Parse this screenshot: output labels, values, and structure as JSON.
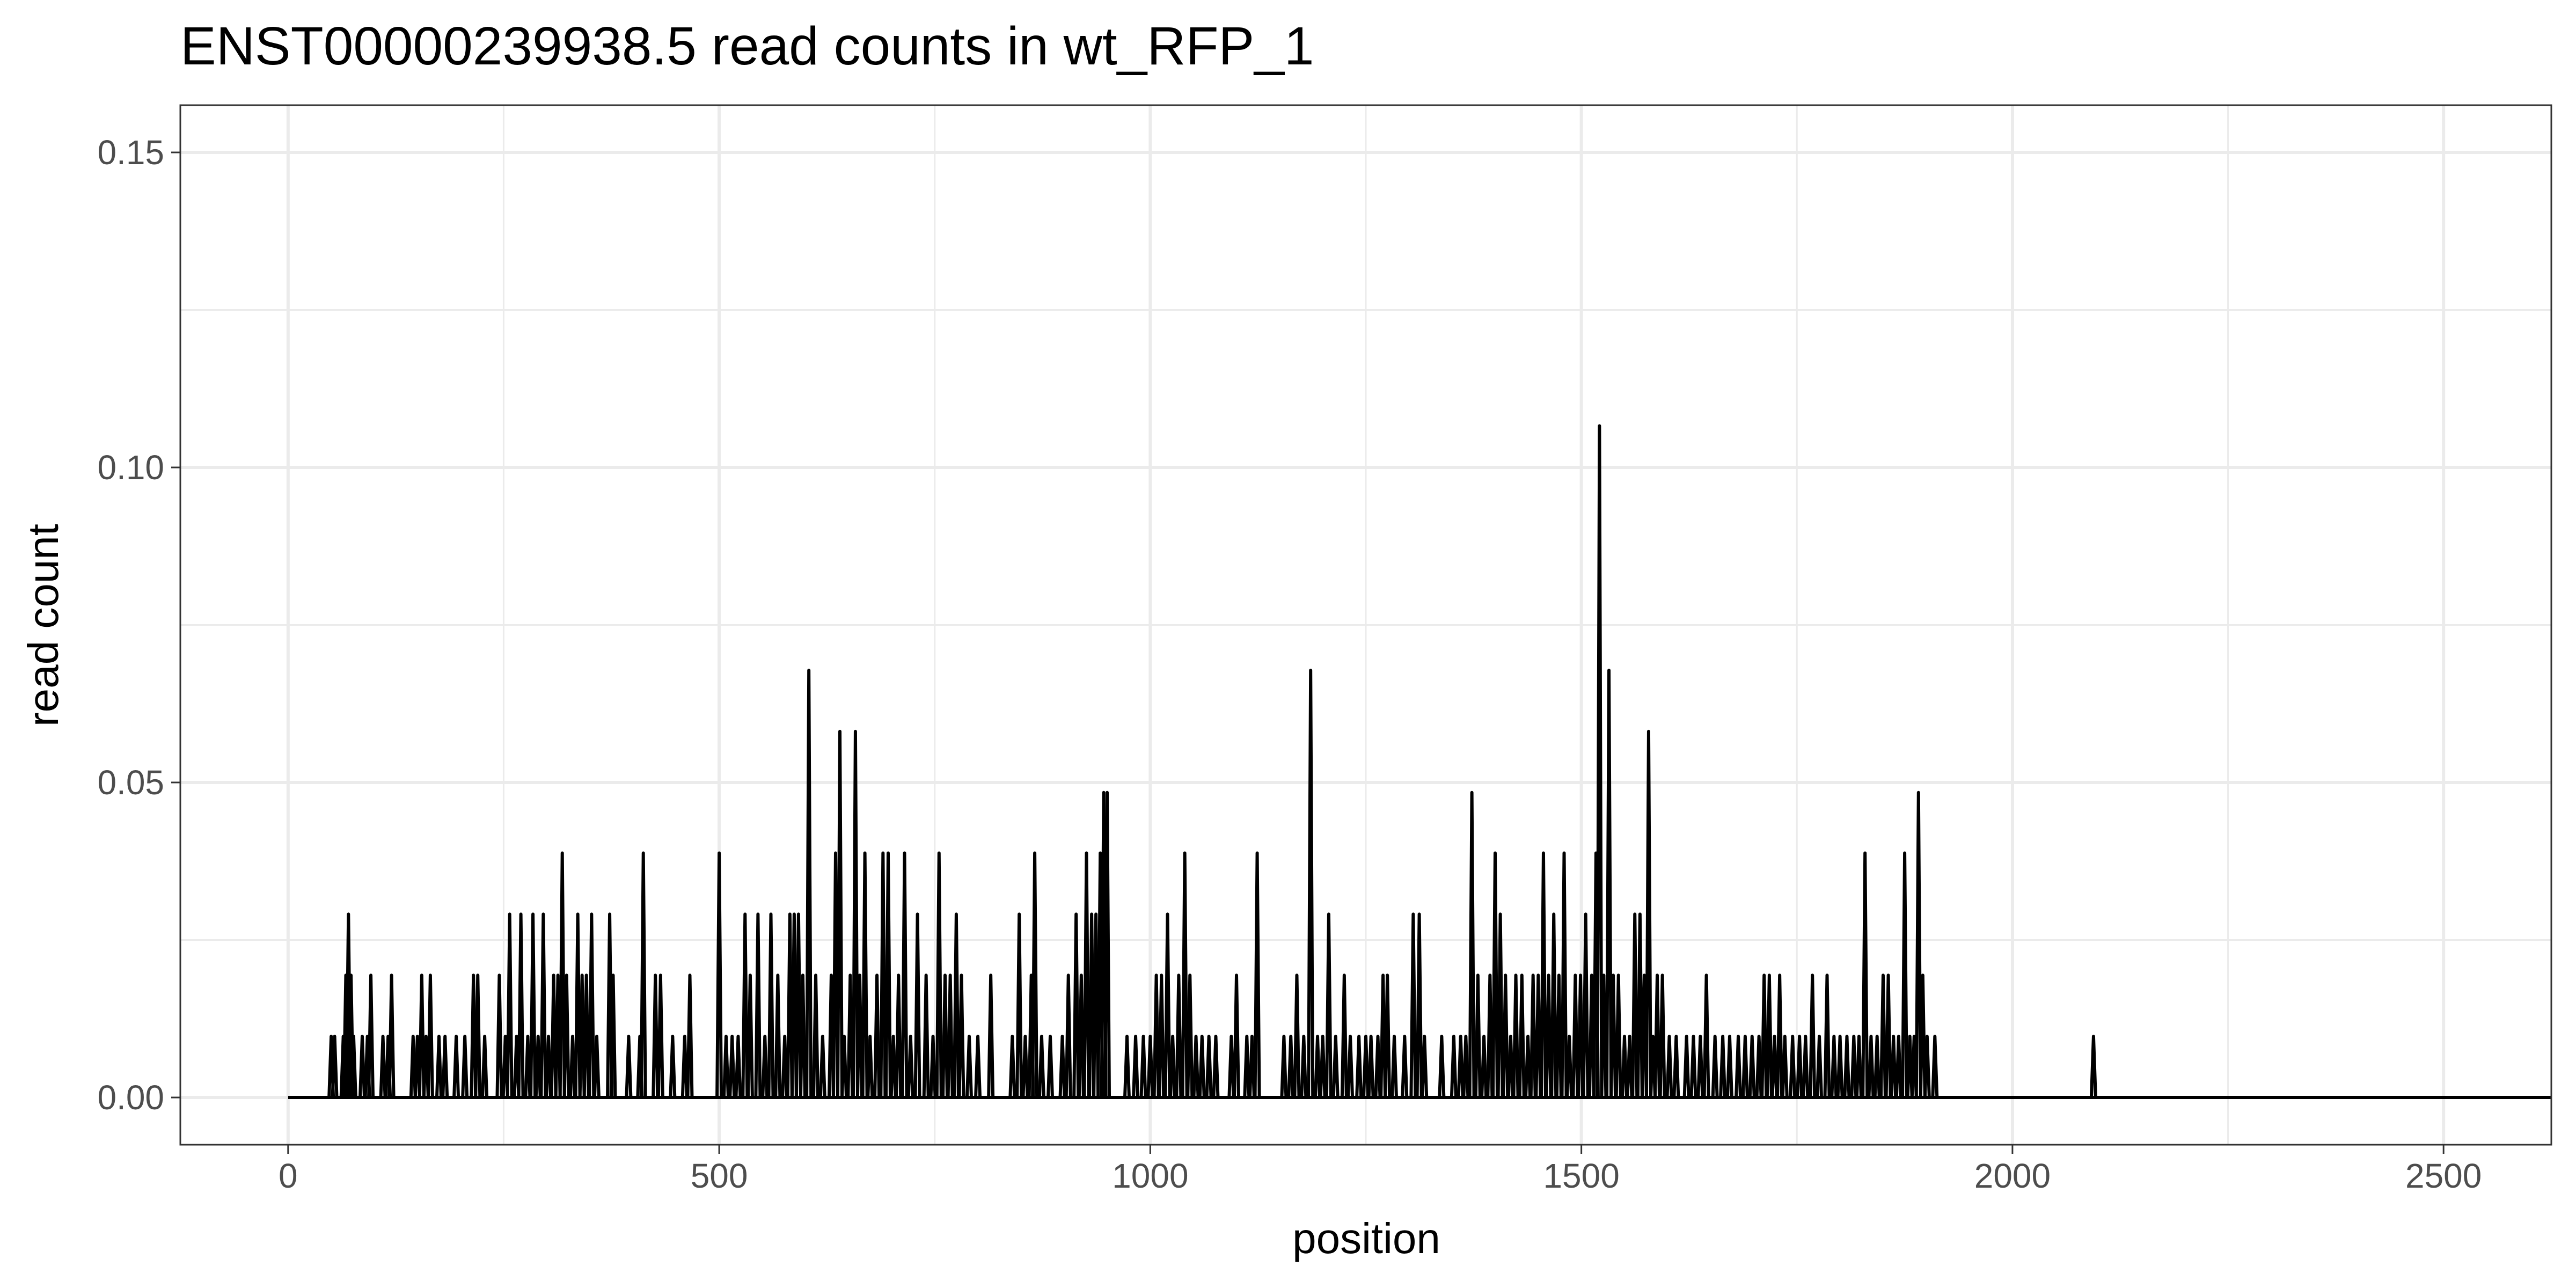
{
  "chart_data": {
    "type": "line",
    "title": "ENST00000239938.5  read counts in  wt_RFP_1",
    "xlabel": "position",
    "ylabel": "read count",
    "xlim": [
      -125,
      2625
    ],
    "ylim": [
      -0.0075,
      0.1575
    ],
    "x_ticks": [
      0,
      500,
      1000,
      1500,
      2000,
      2500
    ],
    "x_tick_labels": [
      "0",
      "500",
      "1000",
      "1500",
      "2000",
      "2500"
    ],
    "y_ticks": [
      0.0,
      0.05,
      0.1,
      0.15
    ],
    "y_tick_labels": [
      "0.00",
      "0.05",
      "0.10",
      "0.15"
    ],
    "grid": true,
    "colors": {
      "line": "#000000",
      "grid": "#ebebeb",
      "panel_border": "#333333",
      "tick_text": "#4d4d4d"
    },
    "series": [
      {
        "name": "wt_RFP_1",
        "baseline_range": [
          0,
          2625
        ],
        "peaks": [
          [
            50,
            0.0097
          ],
          [
            54,
            0.0097
          ],
          [
            64,
            0.0097
          ],
          [
            67,
            0.0194
          ],
          [
            70,
            0.0291
          ],
          [
            73,
            0.0194
          ],
          [
            76,
            0.0097
          ],
          [
            86,
            0.0097
          ],
          [
            92,
            0.0097
          ],
          [
            96,
            0.0194
          ],
          [
            110,
            0.0097
          ],
          [
            116,
            0.0097
          ],
          [
            120,
            0.0194
          ],
          [
            145,
            0.0097
          ],
          [
            150,
            0.0097
          ],
          [
            155,
            0.0194
          ],
          [
            160,
            0.0097
          ],
          [
            165,
            0.0194
          ],
          [
            175,
            0.0097
          ],
          [
            182,
            0.0097
          ],
          [
            195,
            0.0097
          ],
          [
            205,
            0.0097
          ],
          [
            215,
            0.0194
          ],
          [
            220,
            0.0194
          ],
          [
            228,
            0.0097
          ],
          [
            245,
            0.0194
          ],
          [
            252,
            0.0097
          ],
          [
            257,
            0.0291
          ],
          [
            265,
            0.0097
          ],
          [
            270,
            0.0291
          ],
          [
            278,
            0.0097
          ],
          [
            284,
            0.0291
          ],
          [
            290,
            0.0097
          ],
          [
            296,
            0.0291
          ],
          [
            302,
            0.0097
          ],
          [
            308,
            0.0194
          ],
          [
            313,
            0.0194
          ],
          [
            318,
            0.0388
          ],
          [
            323,
            0.0194
          ],
          [
            330,
            0.0097
          ],
          [
            336,
            0.0291
          ],
          [
            341,
            0.0194
          ],
          [
            346,
            0.0194
          ],
          [
            352,
            0.0291
          ],
          [
            358,
            0.0097
          ],
          [
            373,
            0.0291
          ],
          [
            377,
            0.0194
          ],
          [
            395,
            0.0097
          ],
          [
            408,
            0.0097
          ],
          [
            412,
            0.0388
          ],
          [
            426,
            0.0194
          ],
          [
            432,
            0.0194
          ],
          [
            446,
            0.0097
          ],
          [
            460,
            0.0097
          ],
          [
            466,
            0.0194
          ],
          [
            500,
            0.0388
          ],
          [
            508,
            0.0097
          ],
          [
            515,
            0.0097
          ],
          [
            522,
            0.0097
          ],
          [
            530,
            0.0291
          ],
          [
            536,
            0.0194
          ],
          [
            545,
            0.0291
          ],
          [
            553,
            0.0097
          ],
          [
            560,
            0.0291
          ],
          [
            568,
            0.0194
          ],
          [
            576,
            0.0097
          ],
          [
            582,
            0.0291
          ],
          [
            587,
            0.0291
          ],
          [
            592,
            0.0291
          ],
          [
            597,
            0.0194
          ],
          [
            604,
            0.0678
          ],
          [
            612,
            0.0194
          ],
          [
            620,
            0.0097
          ],
          [
            630,
            0.0194
          ],
          [
            635,
            0.0388
          ],
          [
            640,
            0.0581
          ],
          [
            645,
            0.0097
          ],
          [
            652,
            0.0194
          ],
          [
            658,
            0.0581
          ],
          [
            663,
            0.0194
          ],
          [
            669,
            0.0388
          ],
          [
            675,
            0.0097
          ],
          [
            683,
            0.0194
          ],
          [
            690,
            0.0388
          ],
          [
            696,
            0.0388
          ],
          [
            702,
            0.0097
          ],
          [
            708,
            0.0194
          ],
          [
            715,
            0.0388
          ],
          [
            722,
            0.0097
          ],
          [
            730,
            0.0291
          ],
          [
            740,
            0.0194
          ],
          [
            748,
            0.0097
          ],
          [
            755,
            0.0388
          ],
          [
            762,
            0.0194
          ],
          [
            768,
            0.0194
          ],
          [
            775,
            0.0291
          ],
          [
            781,
            0.0194
          ],
          [
            790,
            0.0097
          ],
          [
            800,
            0.0097
          ],
          [
            815,
            0.0194
          ],
          [
            840,
            0.0097
          ],
          [
            848,
            0.0291
          ],
          [
            855,
            0.0097
          ],
          [
            862,
            0.0194
          ],
          [
            866,
            0.0388
          ],
          [
            874,
            0.0097
          ],
          [
            884,
            0.0097
          ],
          [
            898,
            0.0097
          ],
          [
            905,
            0.0194
          ],
          [
            914,
            0.0291
          ],
          [
            920,
            0.0194
          ],
          [
            926,
            0.0388
          ],
          [
            932,
            0.0291
          ],
          [
            937,
            0.0291
          ],
          [
            942,
            0.0388
          ],
          [
            946,
            0.0484
          ],
          [
            950,
            0.0484
          ],
          [
            973,
            0.0097
          ],
          [
            983,
            0.0097
          ],
          [
            992,
            0.0097
          ],
          [
            1000,
            0.0097
          ],
          [
            1007,
            0.0194
          ],
          [
            1013,
            0.0194
          ],
          [
            1020,
            0.0291
          ],
          [
            1026,
            0.0097
          ],
          [
            1033,
            0.0194
          ],
          [
            1040,
            0.0388
          ],
          [
            1046,
            0.0194
          ],
          [
            1053,
            0.0097
          ],
          [
            1060,
            0.0097
          ],
          [
            1068,
            0.0097
          ],
          [
            1076,
            0.0097
          ],
          [
            1094,
            0.0097
          ],
          [
            1100,
            0.0194
          ],
          [
            1112,
            0.0097
          ],
          [
            1118,
            0.0097
          ],
          [
            1124,
            0.0388
          ],
          [
            1155,
            0.0097
          ],
          [
            1163,
            0.0097
          ],
          [
            1170,
            0.0194
          ],
          [
            1178,
            0.0097
          ],
          [
            1186,
            0.0678
          ],
          [
            1194,
            0.0097
          ],
          [
            1200,
            0.0097
          ],
          [
            1207,
            0.0291
          ],
          [
            1215,
            0.0097
          ],
          [
            1225,
            0.0194
          ],
          [
            1232,
            0.0097
          ],
          [
            1242,
            0.0097
          ],
          [
            1250,
            0.0097
          ],
          [
            1256,
            0.0097
          ],
          [
            1264,
            0.0097
          ],
          [
            1270,
            0.0194
          ],
          [
            1275,
            0.0194
          ],
          [
            1283,
            0.0097
          ],
          [
            1295,
            0.0097
          ],
          [
            1305,
            0.0291
          ],
          [
            1312,
            0.0291
          ],
          [
            1318,
            0.0097
          ],
          [
            1338,
            0.0097
          ],
          [
            1352,
            0.0097
          ],
          [
            1360,
            0.0097
          ],
          [
            1366,
            0.0097
          ],
          [
            1373,
            0.0484
          ],
          [
            1380,
            0.0194
          ],
          [
            1387,
            0.0097
          ],
          [
            1394,
            0.0194
          ],
          [
            1400,
            0.0388
          ],
          [
            1406,
            0.0291
          ],
          [
            1412,
            0.0194
          ],
          [
            1418,
            0.0097
          ],
          [
            1424,
            0.0194
          ],
          [
            1431,
            0.0194
          ],
          [
            1438,
            0.0097
          ],
          [
            1444,
            0.0194
          ],
          [
            1450,
            0.0194
          ],
          [
            1456,
            0.0388
          ],
          [
            1462,
            0.0194
          ],
          [
            1468,
            0.0291
          ],
          [
            1474,
            0.0194
          ],
          [
            1480,
            0.0388
          ],
          [
            1486,
            0.0097
          ],
          [
            1493,
            0.0194
          ],
          [
            1499,
            0.0194
          ],
          [
            1505,
            0.0291
          ],
          [
            1512,
            0.0194
          ],
          [
            1517,
            0.0388
          ],
          [
            1521,
            0.1066
          ],
          [
            1526,
            0.0194
          ],
          [
            1532,
            0.0678
          ],
          [
            1537,
            0.0194
          ],
          [
            1543,
            0.0194
          ],
          [
            1550,
            0.0097
          ],
          [
            1556,
            0.0097
          ],
          [
            1562,
            0.0291
          ],
          [
            1568,
            0.0291
          ],
          [
            1573,
            0.0194
          ],
          [
            1578,
            0.0581
          ],
          [
            1583,
            0.0097
          ],
          [
            1588,
            0.0194
          ],
          [
            1594,
            0.0194
          ],
          [
            1602,
            0.0097
          ],
          [
            1610,
            0.0097
          ],
          [
            1622,
            0.0097
          ],
          [
            1630,
            0.0097
          ],
          [
            1638,
            0.0097
          ],
          [
            1645,
            0.0194
          ],
          [
            1655,
            0.0097
          ],
          [
            1664,
            0.0097
          ],
          [
            1672,
            0.0097
          ],
          [
            1682,
            0.0097
          ],
          [
            1690,
            0.0097
          ],
          [
            1698,
            0.0097
          ],
          [
            1706,
            0.0097
          ],
          [
            1712,
            0.0194
          ],
          [
            1718,
            0.0194
          ],
          [
            1724,
            0.0097
          ],
          [
            1730,
            0.0194
          ],
          [
            1736,
            0.0097
          ],
          [
            1745,
            0.0097
          ],
          [
            1753,
            0.0097
          ],
          [
            1760,
            0.0097
          ],
          [
            1768,
            0.0194
          ],
          [
            1776,
            0.0097
          ],
          [
            1785,
            0.0194
          ],
          [
            1793,
            0.0097
          ],
          [
            1800,
            0.0097
          ],
          [
            1808,
            0.0097
          ],
          [
            1816,
            0.0097
          ],
          [
            1822,
            0.0097
          ],
          [
            1829,
            0.0388
          ],
          [
            1836,
            0.0097
          ],
          [
            1843,
            0.0097
          ],
          [
            1850,
            0.0194
          ],
          [
            1856,
            0.0194
          ],
          [
            1862,
            0.0097
          ],
          [
            1868,
            0.0097
          ],
          [
            1875,
            0.0388
          ],
          [
            1881,
            0.0097
          ],
          [
            1886,
            0.0097
          ],
          [
            1891,
            0.0484
          ],
          [
            1896,
            0.0194
          ],
          [
            1901,
            0.0097
          ],
          [
            1910,
            0.0097
          ],
          [
            2094,
            0.0097
          ]
        ]
      }
    ]
  }
}
